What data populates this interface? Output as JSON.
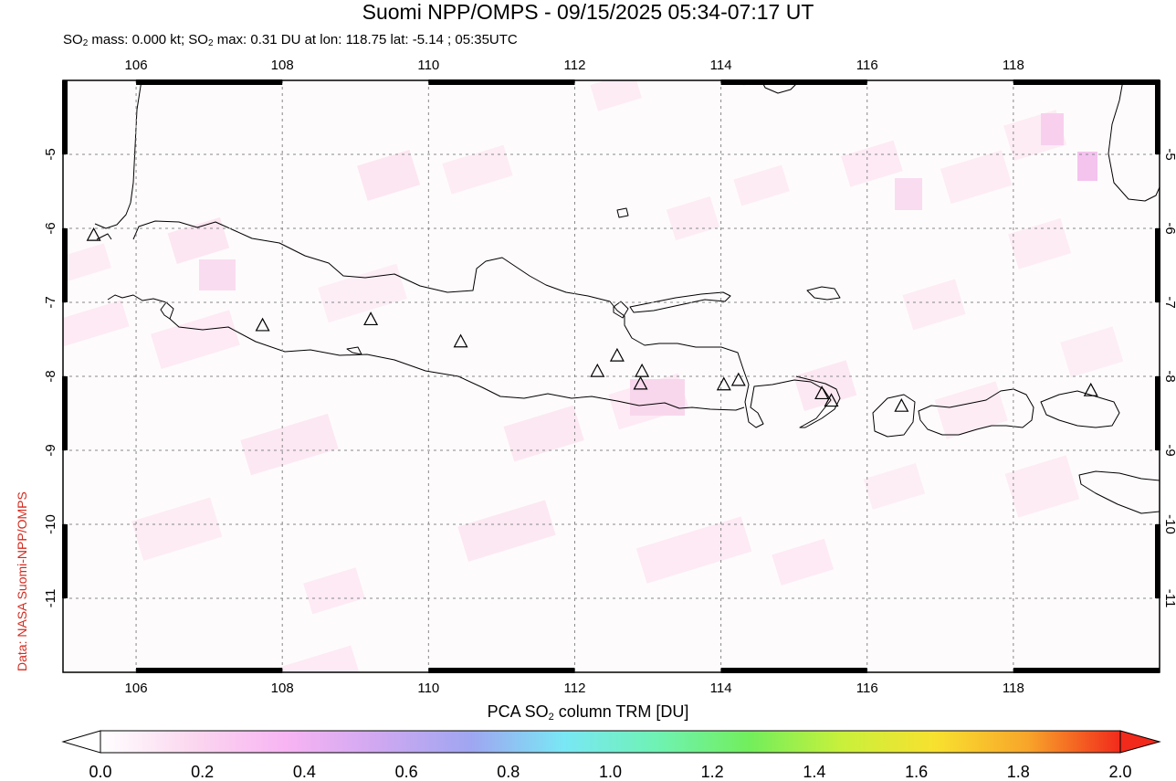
{
  "title": "Suomi NPP/OMPS - 09/15/2025 05:34-07:17 UT",
  "subtitle": {
    "mass_prefix": "SO",
    "mass_sub": "2",
    "mass_text": " mass: 0.000 kt; SO",
    "max_sub": "2",
    "max_text": " max: 0.31 DU at lon: 118.75 lat: -5.14 ; 05:35UTC"
  },
  "credit": "Data: NASA Suomi-NPP/OMPS",
  "map": {
    "lon_range": [
      105,
      120
    ],
    "lat_range": [
      -12,
      -4
    ],
    "lon_ticks": [
      "106",
      "108",
      "110",
      "112",
      "114",
      "116",
      "118"
    ],
    "lat_ticks": [
      "-5",
      "-6",
      "-7",
      "-8",
      "-9",
      "-10",
      "-11"
    ],
    "grid": true,
    "volcanoes": [
      {
        "lon": 105.42,
        "lat": -6.1
      },
      {
        "lon": 107.73,
        "lat": -7.32
      },
      {
        "lon": 109.21,
        "lat": -7.24
      },
      {
        "lon": 110.44,
        "lat": -7.54
      },
      {
        "lon": 112.31,
        "lat": -7.94
      },
      {
        "lon": 112.58,
        "lat": -7.73
      },
      {
        "lon": 112.92,
        "lat": -7.94
      },
      {
        "lon": 112.9,
        "lat": -8.11
      },
      {
        "lon": 114.04,
        "lat": -8.12
      },
      {
        "lon": 114.24,
        "lat": -8.06
      },
      {
        "lon": 115.38,
        "lat": -8.24
      },
      {
        "lon": 115.51,
        "lat": -8.34
      },
      {
        "lon": 116.47,
        "lat": -8.41
      },
      {
        "lon": 119.06,
        "lat": -8.2
      }
    ]
  },
  "colorbar": {
    "label_prefix": "PCA SO",
    "label_sub": "2",
    "label_suffix": " column TRM [DU]",
    "ticks": [
      "0.0",
      "0.2",
      "0.4",
      "0.6",
      "0.8",
      "1.0",
      "1.2",
      "1.4",
      "1.6",
      "1.8",
      "2.0"
    ],
    "colors": [
      "#ffffff",
      "#fbd7ef",
      "#f8b4f3",
      "#cfa8f1",
      "#9fa6f1",
      "#79e7f5",
      "#6ff2b4",
      "#72ee5c",
      "#c9f03b",
      "#f8e12f",
      "#f8a52a",
      "#f12a1c"
    ]
  }
}
